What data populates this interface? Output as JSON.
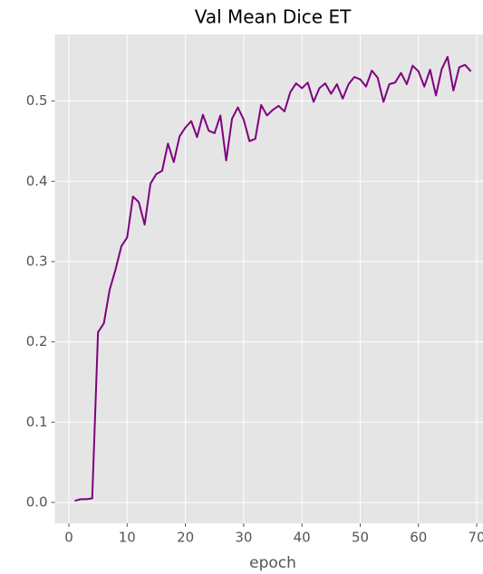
{
  "chart_data": {
    "type": "line",
    "title": "Val Mean Dice ET",
    "xlabel": "epoch",
    "x": [
      1,
      2,
      3,
      4,
      5,
      6,
      7,
      8,
      9,
      10,
      11,
      12,
      13,
      14,
      15,
      16,
      17,
      18,
      19,
      20,
      21,
      22,
      23,
      24,
      25,
      26,
      27,
      28,
      29,
      30,
      31,
      32,
      33,
      34,
      35,
      36,
      37,
      38,
      39,
      40,
      41,
      42,
      43,
      44,
      45,
      46,
      47,
      48,
      49,
      50,
      51,
      52,
      53,
      54,
      55,
      56,
      57,
      58,
      59,
      60,
      61,
      62,
      63,
      64,
      65,
      66,
      67,
      68,
      69
    ],
    "values": [
      0.002,
      0.004,
      0.004,
      0.005,
      0.212,
      0.223,
      0.265,
      0.29,
      0.319,
      0.33,
      0.381,
      0.374,
      0.346,
      0.397,
      0.409,
      0.413,
      0.447,
      0.424,
      0.456,
      0.467,
      0.475,
      0.455,
      0.483,
      0.463,
      0.46,
      0.482,
      0.426,
      0.478,
      0.492,
      0.477,
      0.45,
      0.453,
      0.495,
      0.482,
      0.489,
      0.494,
      0.487,
      0.511,
      0.522,
      0.516,
      0.523,
      0.499,
      0.516,
      0.522,
      0.509,
      0.521,
      0.503,
      0.521,
      0.53,
      0.527,
      0.518,
      0.538,
      0.529,
      0.499,
      0.521,
      0.523,
      0.535,
      0.521,
      0.544,
      0.537,
      0.518,
      0.539,
      0.507,
      0.54,
      0.555,
      0.513,
      0.542,
      0.545,
      0.537
    ],
    "color": "#800080",
    "xlim": [
      -2.4,
      72.4
    ],
    "xticks": [
      0,
      10,
      20,
      30,
      40,
      50,
      60,
      70
    ],
    "ylim": [
      -0.026,
      0.583
    ],
    "yticks": [
      {
        "value": 0,
        "label": "0.0"
      },
      0.1,
      0.2,
      0.3,
      0.4,
      0.5
    ],
    "grid": true
  }
}
